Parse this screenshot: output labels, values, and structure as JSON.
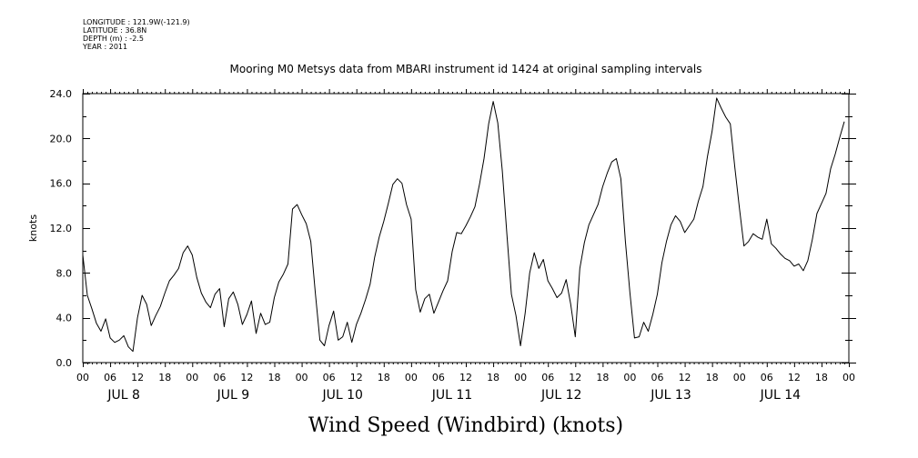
{
  "metadata": {
    "longitude": "LONGITUDE : 121.9W(-121.9)",
    "latitude": "LATITUDE : 36.8N",
    "depth": "DEPTH (m) : -2.5",
    "year": "YEAR : 2011"
  },
  "chart_data": {
    "type": "line",
    "title": "Mooring M0 Metsys data from MBARI instrument id 1424 at original sampling intervals",
    "xlabel": "Wind Speed (Windbird) (knots)",
    "ylabel": "knots",
    "ylim": [
      0,
      24
    ],
    "yticks": [
      0,
      4,
      8,
      12,
      16,
      20,
      24
    ],
    "ytick_labels": [
      "0.0",
      "4.0",
      "8.0",
      "12.0",
      "16.0",
      "20.0",
      "24.0"
    ],
    "xlim_hours": [
      0,
      168
    ],
    "hour_tick_labels": [
      "00",
      "06",
      "12",
      "18",
      "00",
      "06",
      "12",
      "18",
      "00",
      "06",
      "12",
      "18",
      "00",
      "06",
      "12",
      "18",
      "00",
      "06",
      "12",
      "18",
      "00",
      "06",
      "12",
      "18",
      "00",
      "06",
      "12",
      "18",
      "00"
    ],
    "day_labels": [
      "JUL 8",
      "JUL 9",
      "JUL 10",
      "JUL 11",
      "JUL 12",
      "JUL 13",
      "JUL 14"
    ],
    "grid": false,
    "series": [
      {
        "color": "#000000",
        "x": [
          0,
          1,
          2,
          3,
          4,
          5,
          6,
          7,
          8,
          9,
          10,
          11,
          12,
          13,
          14,
          15,
          16,
          17,
          18,
          19,
          20,
          21,
          22,
          23,
          24,
          25,
          26,
          27,
          28,
          29,
          30,
          31,
          32,
          33,
          34,
          35,
          36,
          37,
          38,
          39,
          40,
          41,
          42,
          43,
          44,
          45,
          46,
          47,
          48,
          49,
          50,
          51,
          52,
          53,
          54,
          55,
          56,
          57,
          58,
          59,
          60,
          61,
          62,
          63,
          64,
          65,
          66,
          67,
          68,
          69,
          70,
          71,
          72,
          73,
          74,
          75,
          76,
          77,
          78,
          79,
          80,
          81,
          82,
          83,
          84,
          85,
          86,
          87,
          88,
          89,
          90,
          91,
          92,
          93,
          94,
          95,
          96,
          97,
          98,
          99,
          100,
          101,
          102,
          103,
          104,
          105,
          106,
          107,
          108,
          109,
          110,
          111,
          112,
          113,
          114,
          115,
          116,
          117,
          118,
          119,
          120,
          121,
          122,
          123,
          124,
          125,
          126,
          127,
          128,
          129,
          130,
          131,
          132,
          133,
          134,
          135,
          136,
          137,
          138,
          139,
          140,
          141,
          142,
          143,
          144,
          145,
          146,
          147,
          148,
          149,
          150,
          151,
          152,
          153,
          154,
          155,
          156,
          157,
          158,
          159,
          160,
          161,
          162,
          163,
          164,
          165,
          166,
          167
        ],
        "y": [
          9.6,
          6.0,
          4.8,
          3.5,
          2.8,
          3.9,
          2.2,
          1.8,
          2.0,
          2.4,
          1.4,
          1.0,
          4.0,
          6.0,
          5.2,
          3.3,
          4.2,
          5.0,
          6.2,
          7.3,
          7.8,
          8.4,
          9.8,
          10.4,
          9.6,
          7.6,
          6.2,
          5.4,
          4.9,
          6.1,
          6.6,
          3.2,
          5.7,
          6.3,
          5.2,
          3.4,
          4.3,
          5.5,
          2.6,
          4.4,
          3.4,
          3.6,
          5.8,
          7.2,
          7.9,
          8.8,
          13.7,
          14.1,
          13.2,
          12.4,
          10.8,
          6.2,
          2.0,
          1.5,
          3.3,
          4.6,
          2.0,
          2.3,
          3.6,
          1.8,
          3.4,
          4.4,
          5.6,
          7.0,
          9.4,
          11.2,
          12.6,
          14.2,
          15.9,
          16.4,
          16.0,
          14.1,
          12.8,
          6.5,
          4.5,
          5.7,
          6.1,
          4.4,
          5.4,
          6.4,
          7.3,
          9.9,
          11.6,
          11.5,
          12.2,
          13.0,
          13.9,
          15.9,
          18.2,
          21.3,
          23.3,
          21.4,
          17.1,
          11.5,
          6.1,
          4.2,
          1.5,
          4.4,
          8.0,
          9.8,
          8.4,
          9.2,
          7.3,
          6.6,
          5.8,
          6.2,
          7.4,
          5.2,
          2.3,
          8.4,
          10.7,
          12.3,
          13.2,
          14.1,
          15.7,
          16.9,
          17.9,
          18.2,
          16.4,
          10.8,
          6.2,
          2.2,
          2.3,
          3.6,
          2.8,
          4.3,
          6.1,
          8.9,
          10.8,
          12.3,
          13.1,
          12.6,
          11.6,
          12.2,
          12.8,
          14.4,
          15.7,
          18.4,
          20.6,
          23.6,
          22.7,
          21.9,
          21.3,
          17.4,
          13.8,
          10.4,
          10.8,
          11.5,
          11.2,
          11.0,
          12.8,
          10.6,
          10.2,
          9.7,
          9.3,
          9.1,
          8.6,
          8.8,
          8.2,
          9.1,
          11.0,
          13.3,
          14.2,
          15.1,
          17.3,
          18.6,
          20.1,
          21.5
        ]
      }
    ]
  }
}
